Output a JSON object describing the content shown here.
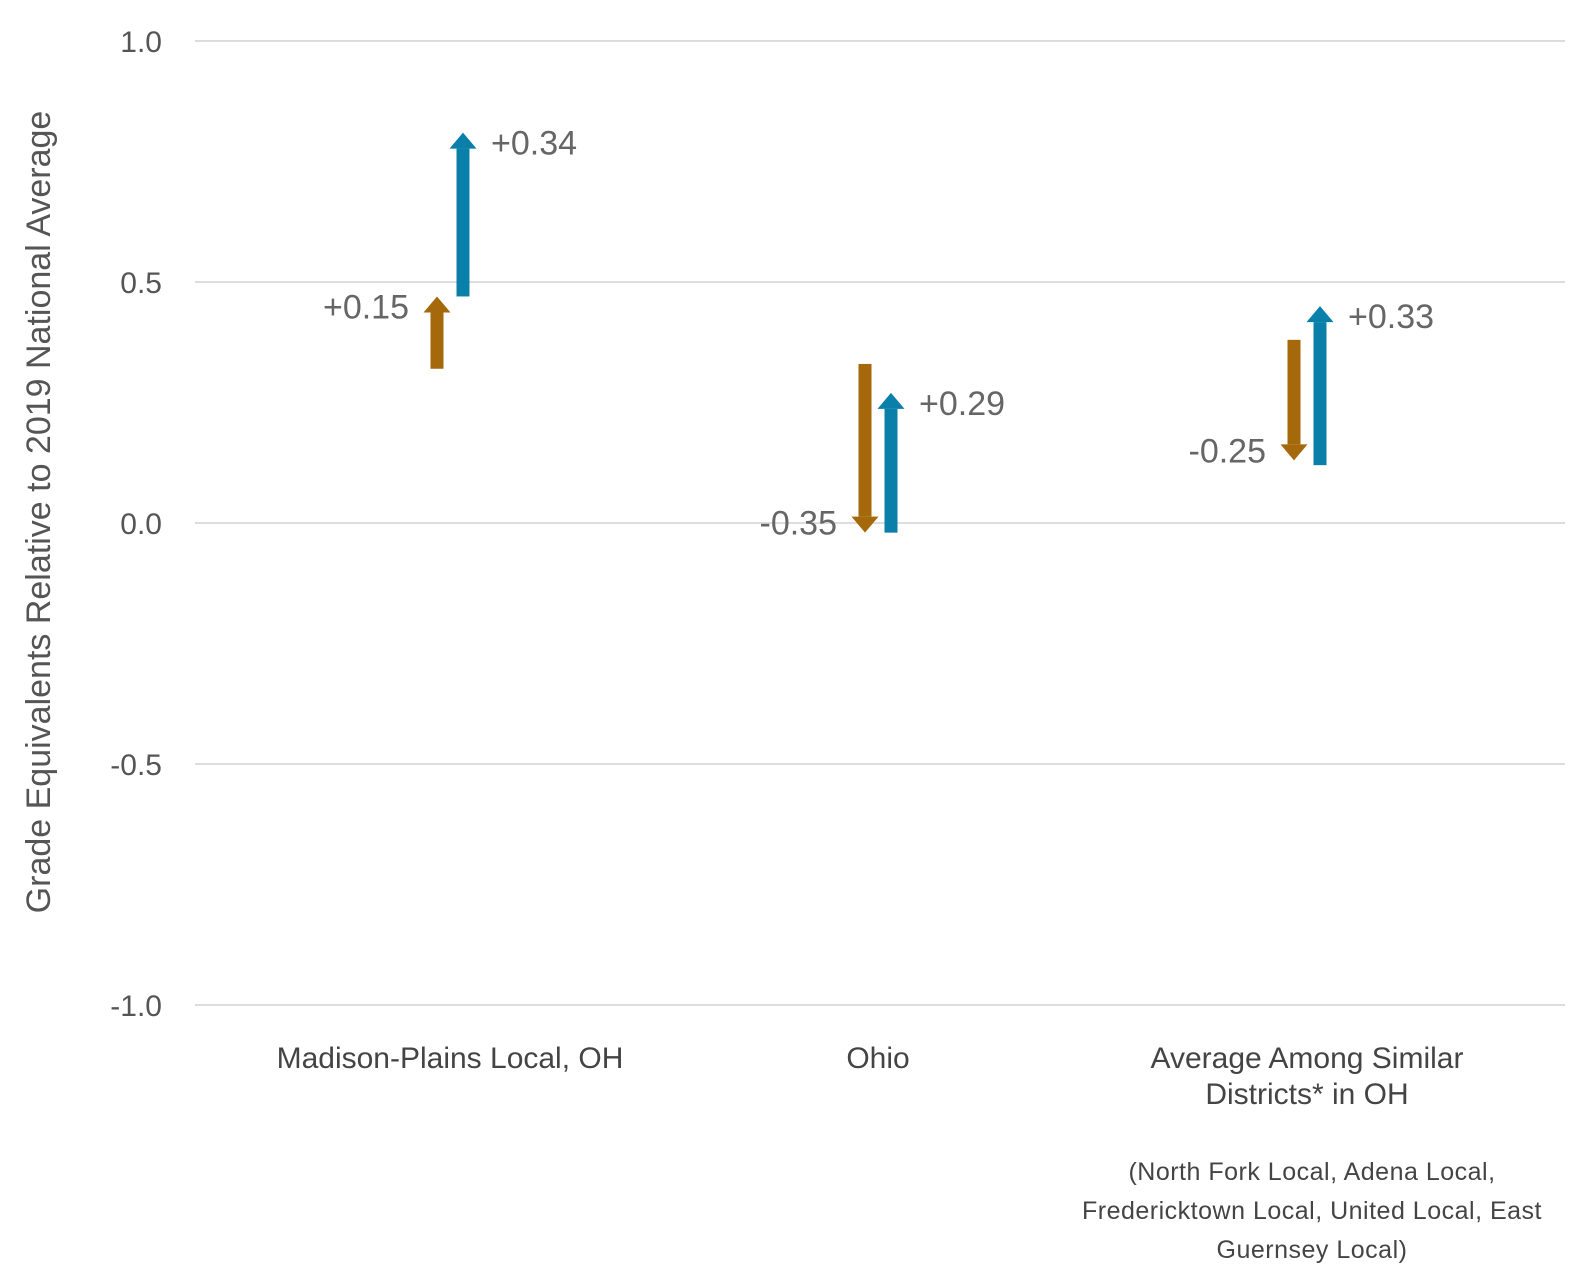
{
  "chart_data": {
    "type": "arrow-range",
    "ylabel": "Grade Equivalents Relative to 2019 National Average",
    "ylim": [
      -1.0,
      1.0
    ],
    "yticks": [
      {
        "value": 1.0,
        "label": "1.0"
      },
      {
        "value": 0.5,
        "label": "0.5"
      },
      {
        "value": 0.0,
        "label": "0.0"
      },
      {
        "value": -0.5,
        "label": "-0.5"
      },
      {
        "value": -1.0,
        "label": "-1.0"
      }
    ],
    "grid": true,
    "categories": [
      {
        "lines": [
          "Madison-Plains Local, OH"
        ],
        "note": []
      },
      {
        "lines": [
          "Ohio"
        ],
        "note": []
      },
      {
        "lines": [
          "Average Among Similar",
          "Districts* in OH"
        ],
        "note": [
          "(North Fork Local, Adena Local,",
          "Fredericktown Local, United Local, East",
          "Guernsey Local)"
        ]
      }
    ],
    "series": [
      {
        "color": "#A5680A",
        "label_side": "left",
        "arrows": [
          {
            "from": 0.32,
            "to": 0.47,
            "label": "+0.15"
          },
          {
            "from": 0.33,
            "to": -0.02,
            "label": "-0.35"
          },
          {
            "from": 0.38,
            "to": 0.13,
            "label": "-0.25"
          }
        ]
      },
      {
        "color": "#0A7FAA",
        "label_side": "right",
        "arrows": [
          {
            "from": 0.47,
            "to": 0.81,
            "label": "+0.34"
          },
          {
            "from": -0.02,
            "to": 0.27,
            "label": "+0.29"
          },
          {
            "from": 0.12,
            "to": 0.45,
            "label": "+0.33"
          }
        ]
      }
    ]
  }
}
